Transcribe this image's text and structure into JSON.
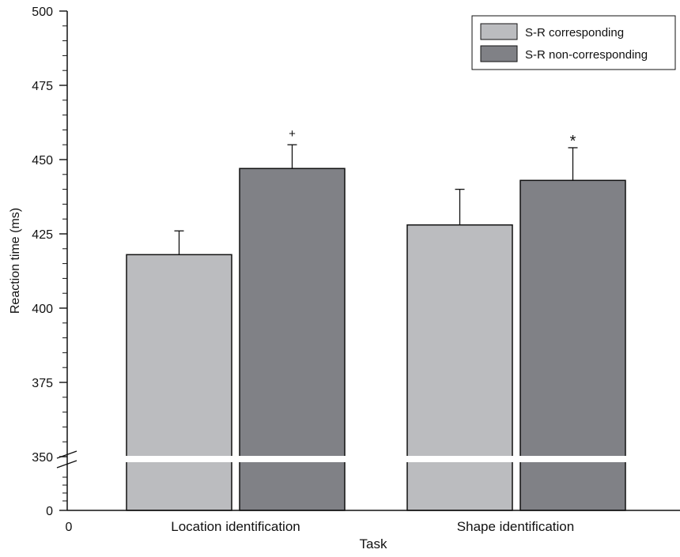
{
  "chart_data": {
    "type": "bar",
    "title": "",
    "xlabel": "Task",
    "ylabel": "Reaction time (ms)",
    "categories": [
      "Location identification",
      "Shape identification"
    ],
    "series": [
      {
        "name": "S-R corresponding",
        "color": "#bbbcbf",
        "values": [
          418,
          428
        ],
        "error": [
          8,
          12
        ],
        "markers": [
          "",
          ""
        ]
      },
      {
        "name": "S-R non-corresponding",
        "color": "#808186",
        "values": [
          447,
          443
        ],
        "error": [
          8,
          11
        ],
        "markers": [
          "+",
          "*"
        ]
      }
    ],
    "ylim": [
      350,
      500
    ],
    "y_ticks": [
      "500",
      "475",
      "450",
      "425",
      "400",
      "375",
      "350"
    ],
    "y_tick_values": [
      500,
      475,
      450,
      425,
      400,
      375,
      350
    ],
    "broken_axis": {
      "lower_tick_label": "0",
      "origin_label": "0"
    },
    "legend_position": "top-right",
    "grid": false
  }
}
